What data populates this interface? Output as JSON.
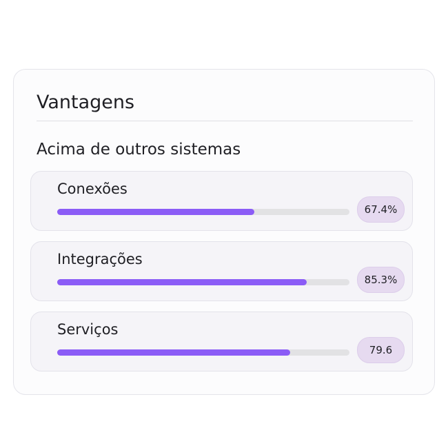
{
  "header": {
    "title": "Vantagens"
  },
  "section": {
    "title": "Acima de outros sistemas",
    "items": [
      {
        "label": "Conexões",
        "value": 67.4,
        "value_label": "67.4%"
      },
      {
        "label": "Integrações",
        "value": 85.3,
        "value_label": "85.3%"
      },
      {
        "label": "Serviços",
        "value": 79.6,
        "value_label": "79.6"
      }
    ]
  }
}
